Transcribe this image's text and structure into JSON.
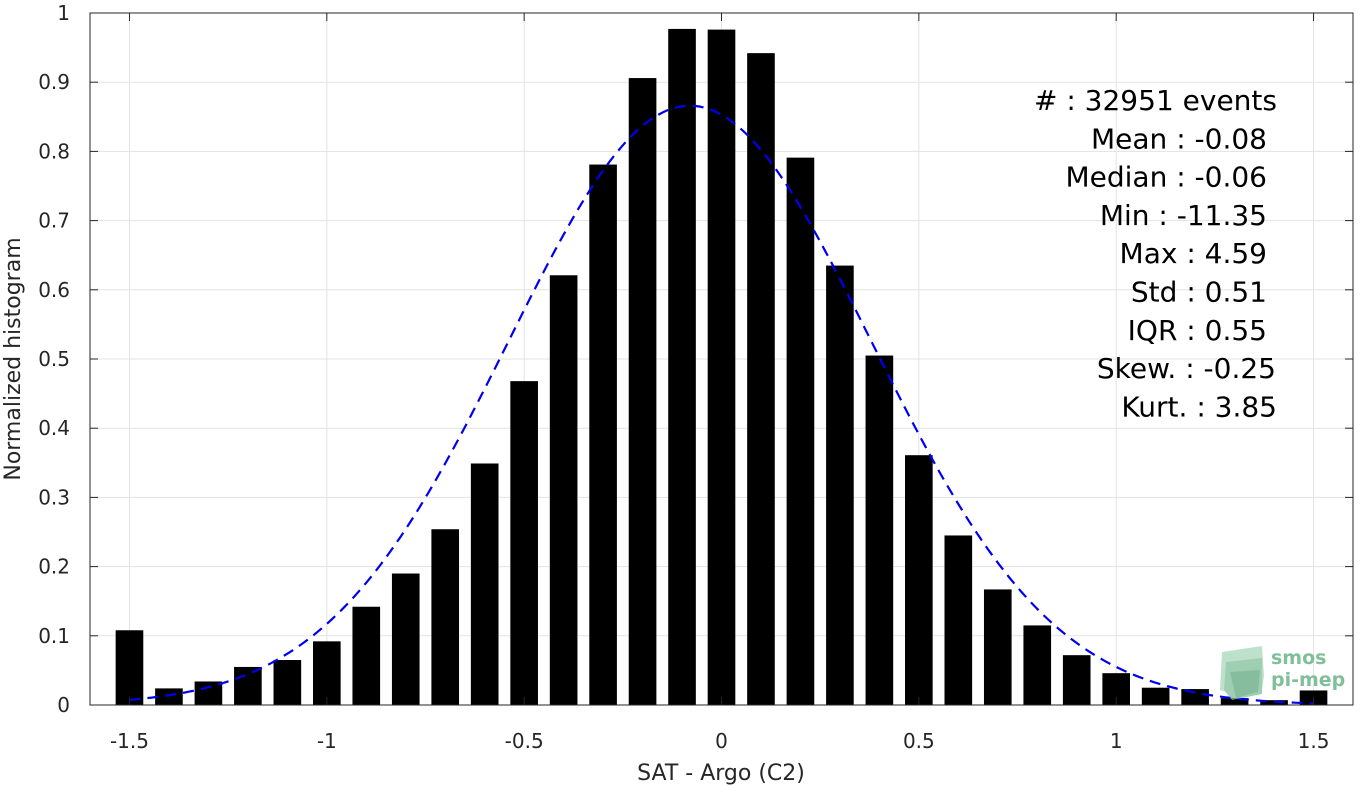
{
  "chart_data": {
    "type": "bar",
    "xlabel": "SAT - Argo (C2)",
    "ylabel": "Normalized histogram",
    "xlim": [
      -1.6,
      1.6
    ],
    "ylim": [
      0,
      1
    ],
    "grid": true,
    "x_ticks": [
      "-1.5",
      "-1",
      "-0.5",
      "0",
      "0.5",
      "1",
      "1.5"
    ],
    "y_ticks": [
      "0",
      "0.1",
      "0.2",
      "0.3",
      "0.4",
      "0.5",
      "0.6",
      "0.7",
      "0.8",
      "0.9",
      "1"
    ],
    "bar_color": "#000000",
    "bins": [
      -1.5,
      -1.4,
      -1.3,
      -1.2,
      -1.1,
      -1.0,
      -0.9,
      -0.8,
      -0.7,
      -0.6,
      -0.5,
      -0.4,
      -0.3,
      -0.2,
      -0.1,
      0.0,
      0.1,
      0.2,
      0.3,
      0.4,
      0.5,
      0.6,
      0.7,
      0.8,
      0.9,
      1.0,
      1.1,
      1.2,
      1.3,
      1.4,
      1.5
    ],
    "values": [
      0.108,
      0.024,
      0.034,
      0.055,
      0.065,
      0.092,
      0.142,
      0.19,
      0.254,
      0.349,
      0.468,
      0.621,
      0.781,
      0.906,
      0.977,
      0.976,
      0.942,
      0.791,
      0.635,
      0.505,
      0.361,
      0.245,
      0.167,
      0.115,
      0.072,
      0.046,
      0.025,
      0.023,
      0.01,
      0.007,
      0.021
    ],
    "fit": {
      "type": "gaussian-dashed",
      "color": "#0000ee",
      "mean": -0.08,
      "std": 0.46,
      "peak": 0.866
    },
    "annotations": [
      "#  : 32951 events",
      "Mean : -0.08",
      "Median : -0.06",
      "Min : -11.35",
      "Max : 4.59",
      "Std : 0.51",
      "IQR : 0.55",
      "Skew. : -0.25",
      "Kurt. : 3.85"
    ]
  },
  "logo": {
    "line1": "smos",
    "line2": "pi-mep",
    "color": "#7fbf9a"
  }
}
